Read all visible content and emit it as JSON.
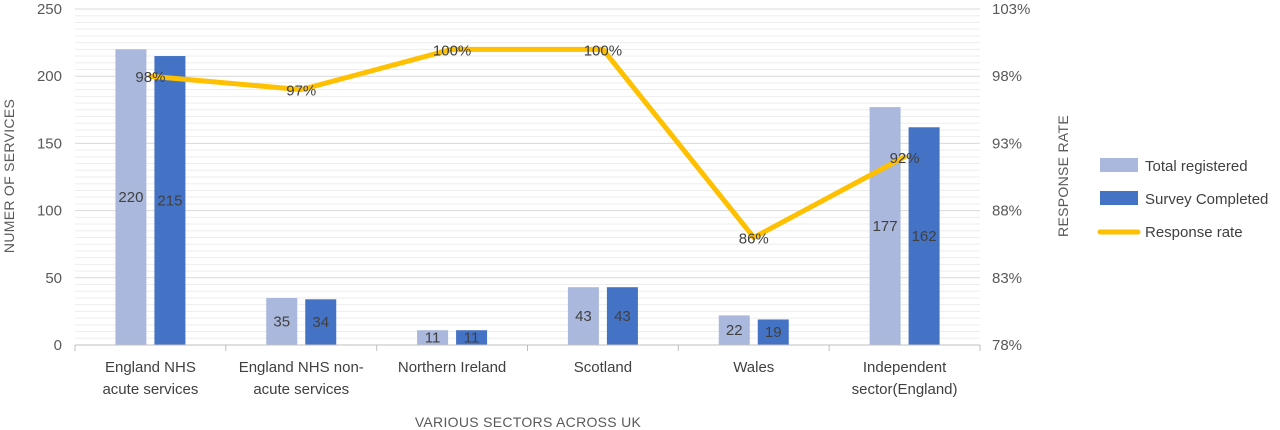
{
  "chart_data": {
    "type": "bar",
    "categories": [
      [
        "England NHS",
        "acute services"
      ],
      [
        "England NHS non-",
        "acute services"
      ],
      [
        "Northern Ireland"
      ],
      [
        "Scotland"
      ],
      [
        "Wales"
      ],
      [
        "Independent",
        "sector(England)"
      ]
    ],
    "series": [
      {
        "name": "Total registered",
        "type": "bar",
        "axis": "left",
        "color": "#A9B8DC",
        "values": [
          220,
          35,
          11,
          43,
          22,
          177
        ],
        "labels": [
          "220",
          "35",
          "11",
          "43",
          "22",
          "177"
        ]
      },
      {
        "name": "Survey Completed",
        "type": "bar",
        "axis": "left",
        "color": "#4472C4",
        "values": [
          215,
          34,
          11,
          43,
          19,
          162
        ],
        "labels": [
          "215",
          "34",
          "11",
          "43",
          "19",
          "162"
        ]
      },
      {
        "name": "Response rate",
        "type": "line",
        "axis": "right",
        "color": "#FFC000",
        "values": [
          98,
          97,
          100,
          100,
          86,
          92
        ],
        "labels": [
          "98%",
          "97%",
          "100%",
          "100%",
          "86%",
          "92%"
        ]
      }
    ],
    "xlabel": "VARIOUS SECTORS ACROSS UK",
    "ylabel": "NUMER OF SERVICES",
    "y2label": "RESPONSE RATE",
    "ylim": [
      0,
      250
    ],
    "yticks": [
      "0",
      "50",
      "100",
      "150",
      "200",
      "250"
    ],
    "y2lim": [
      78,
      103
    ],
    "y2ticks": [
      "78%",
      "83%",
      "88%",
      "93%",
      "98%",
      "103%"
    ],
    "grid": true,
    "legend": "right"
  }
}
